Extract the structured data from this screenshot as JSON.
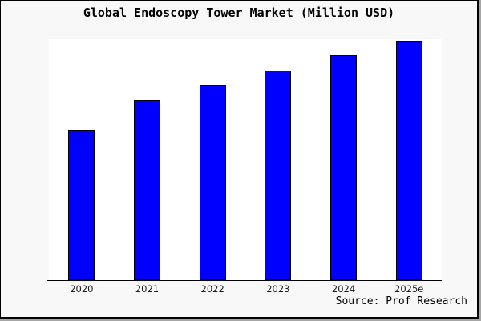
{
  "figure": {
    "title": "Global Endoscopy Tower Market (Million USD)",
    "source": "Source: Prof Research",
    "background_color": "#f8f8f8",
    "plot_background_color": "#ffffff",
    "bar_color": "#0000ff",
    "bar_border_color": "#000000",
    "axis_line_color": "#000000",
    "frame_border_color": "#000000",
    "frame_shadow_color": "#a6a6a6"
  },
  "chart_data": {
    "type": "bar",
    "title": "Global Endoscopy Tower Market (Million USD)",
    "categories": [
      "2020",
      "2021",
      "2022",
      "2023",
      "2024",
      "2025e"
    ],
    "values": [
      62.7,
      75.1,
      81.6,
      87.7,
      93.8,
      100
    ],
    "unit": "relative bar height, % of tallest bar (y-axis not labeled in figure)",
    "xlabel": "",
    "ylabel": "",
    "ylim": [
      0,
      100
    ],
    "grid": false,
    "legend": "none",
    "annotation": "Source: Prof Research"
  }
}
